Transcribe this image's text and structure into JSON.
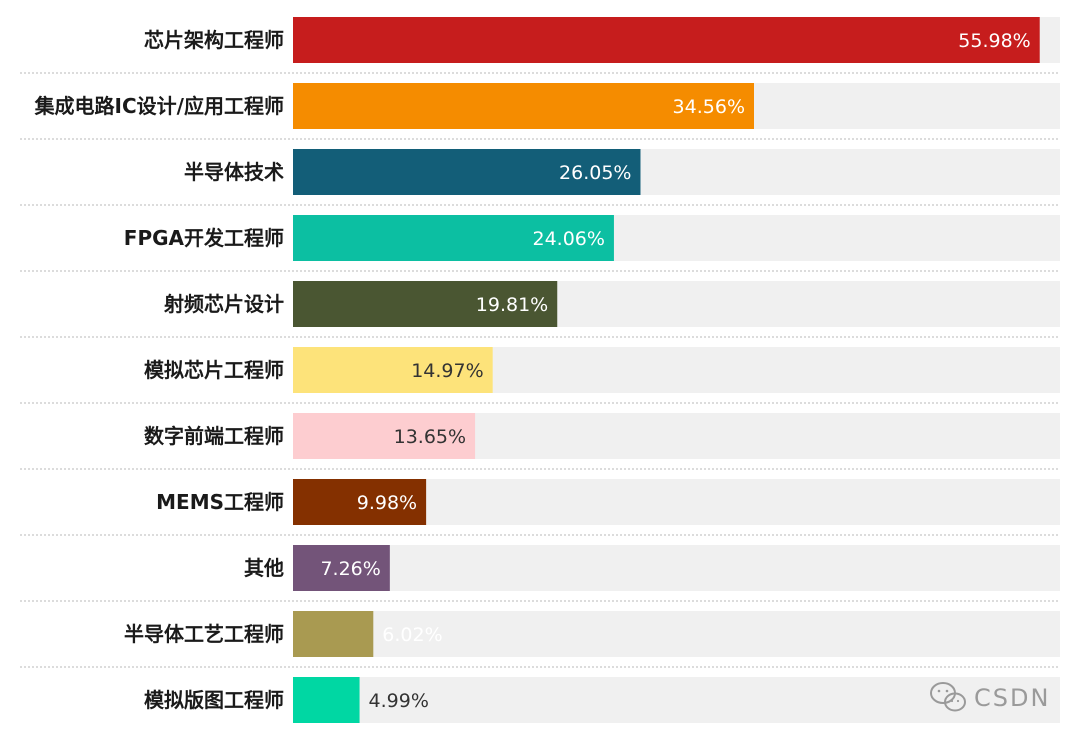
{
  "chart_data": {
    "type": "bar",
    "orientation": "horizontal",
    "categories": [
      "芯片架构工程师",
      "集成电路IC设计/应用工程师",
      "半导体技术",
      "FPGA开发工程师",
      "射频芯片设计",
      "模拟芯片工程师",
      "数字前端工程师",
      "MEMS工程师",
      "其他",
      "半导体工艺工程师",
      "模拟版图工程师"
    ],
    "values": [
      55.98,
      34.56,
      26.05,
      24.06,
      19.81,
      14.97,
      13.65,
      9.98,
      7.26,
      6.02,
      4.99
    ],
    "value_labels": [
      "55.98%",
      "34.56%",
      "26.05%",
      "24.06%",
      "19.81%",
      "14.97%",
      "13.65%",
      "9.98%",
      "7.26%",
      "6.02%",
      "4.99%"
    ],
    "colors": [
      "#c61d1d",
      "#f58c00",
      "#135e78",
      "#0cbfa2",
      "#4a5632",
      "#fde37a",
      "#fdcdd0",
      "#843000",
      "#735479",
      "#a99a51",
      "#00d7a3"
    ],
    "value_label_colors": [
      "#ffffff",
      "#ffffff",
      "#ffffff",
      "#ffffff",
      "#ffffff",
      "#333333",
      "#333333",
      "#ffffff",
      "#ffffff",
      "#ffffff",
      "#333333"
    ],
    "track_color": "#f0f0f0",
    "xlim": [
      0,
      57.5
    ],
    "grid": false,
    "legend": false
  },
  "watermark": {
    "text": "CSDN",
    "icon": "wechat-icon"
  }
}
